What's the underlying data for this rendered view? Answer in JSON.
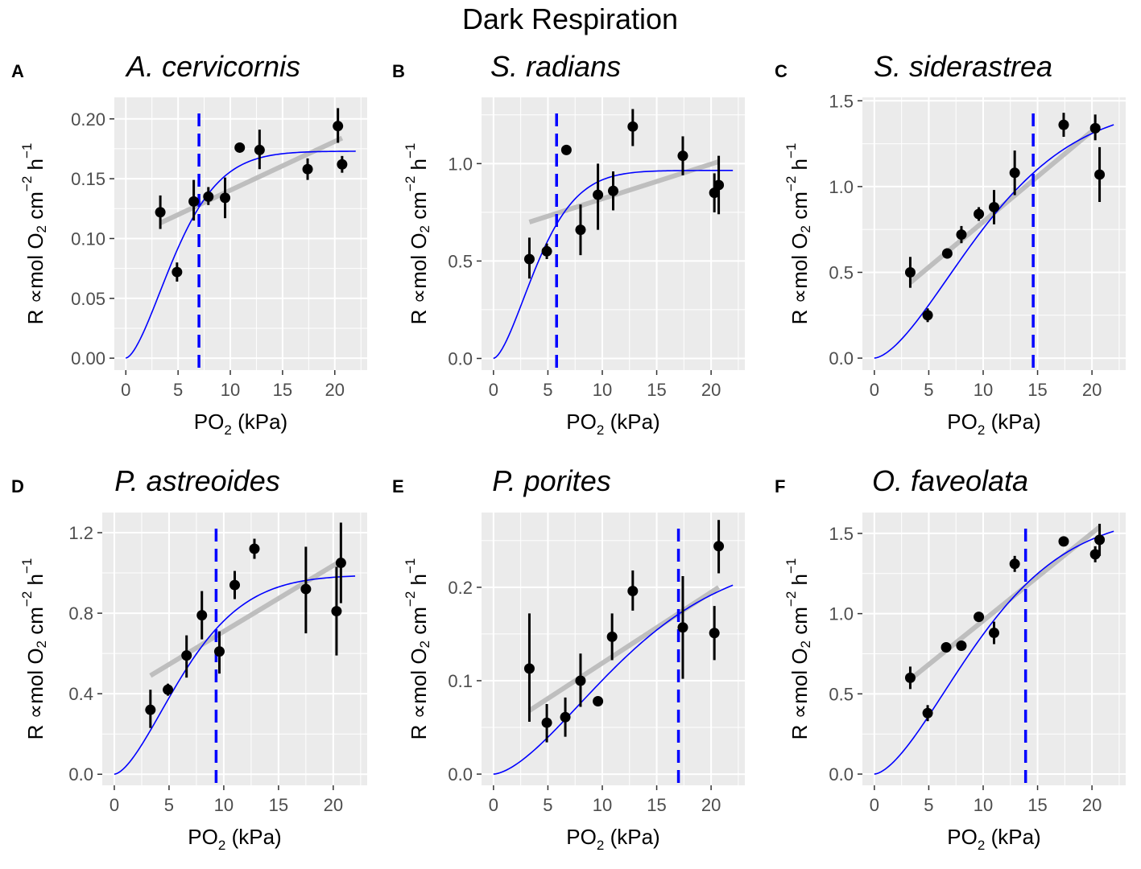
{
  "figure_title": "Dark Respiration",
  "colors": {
    "panel_bg": "#EBEBEB",
    "grid": "#FFFFFF",
    "fit_curve": "#0000FF",
    "pcrit_line": "#0000FF",
    "linear_fit": "#BEBEBE",
    "points": "#000000",
    "tick_text": "#4D4D4D"
  },
  "axis_labels": {
    "x": {
      "main": "PO",
      "sub": "2",
      "rest": " (kPa)"
    },
    "y": {
      "r": "R ",
      "mu": "∝",
      "mol": "mol O",
      "o2sub": "2",
      "cm": " cm",
      "cmsup": "−2",
      "h": " h",
      "hsup": "−1"
    }
  },
  "chart_data": [
    {
      "type": "scatter",
      "letter": "A",
      "title": "A. cervicornis",
      "xlabel": "PO2 (kPa)",
      "ylabel": "R ∝mol O2 cm−2 h−1",
      "xlim": [
        -1.1,
        23.1
      ],
      "ylim": [
        -0.01,
        0.218
      ],
      "xticks": [
        0,
        5,
        10,
        15,
        20
      ],
      "yticks": [
        0.0,
        0.05,
        0.1,
        0.15,
        0.2
      ],
      "ytick_labels": [
        "0.00",
        "0.05",
        "0.10",
        "0.15",
        "0.20"
      ],
      "points": [
        {
          "x": 3.3,
          "y": 0.122,
          "lo": 0.108,
          "hi": 0.136
        },
        {
          "x": 4.9,
          "y": 0.072,
          "lo": 0.064,
          "hi": 0.08
        },
        {
          "x": 6.5,
          "y": 0.131,
          "lo": 0.115,
          "hi": 0.149
        },
        {
          "x": 7.9,
          "y": 0.135,
          "lo": 0.128,
          "hi": 0.143
        },
        {
          "x": 9.5,
          "y": 0.134,
          "lo": 0.117,
          "hi": 0.151
        },
        {
          "x": 10.9,
          "y": 0.176,
          "lo": 0.173,
          "hi": 0.179
        },
        {
          "x": 12.8,
          "y": 0.174,
          "lo": 0.158,
          "hi": 0.191
        },
        {
          "x": 17.4,
          "y": 0.158,
          "lo": 0.149,
          "hi": 0.167
        },
        {
          "x": 20.3,
          "y": 0.194,
          "lo": 0.18,
          "hi": 0.209
        },
        {
          "x": 20.7,
          "y": 0.162,
          "lo": 0.155,
          "hi": 0.169
        }
      ],
      "pcrit": 7.0,
      "fit_curve": {
        "vmax": 0.173,
        "k": 5.93,
        "n": 1.6
      },
      "linear_fit": {
        "x": [
          3.3,
          20.7
        ],
        "y": [
          0.113,
          0.184
        ]
      }
    },
    {
      "type": "scatter",
      "letter": "B",
      "title": "S. radians",
      "xlabel": "PO2 (kPa)",
      "ylabel": "R ∝mol O2 cm−2 h−1",
      "xlim": [
        -1.1,
        23.1
      ],
      "ylim": [
        -0.06,
        1.34
      ],
      "xticks": [
        0,
        5,
        10,
        15,
        20
      ],
      "yticks": [
        0.0,
        0.5,
        1.0
      ],
      "ytick_labels": [
        "0.0",
        "0.5",
        "1.0"
      ],
      "points": [
        {
          "x": 3.3,
          "y": 0.51,
          "lo": 0.41,
          "hi": 0.62
        },
        {
          "x": 4.9,
          "y": 0.55,
          "lo": 0.51,
          "hi": 0.59
        },
        {
          "x": 6.7,
          "y": 1.07,
          "lo": 1.05,
          "hi": 1.09
        },
        {
          "x": 8.0,
          "y": 0.66,
          "lo": 0.53,
          "hi": 0.79
        },
        {
          "x": 9.6,
          "y": 0.84,
          "lo": 0.66,
          "hi": 1.0
        },
        {
          "x": 11.0,
          "y": 0.86,
          "lo": 0.76,
          "hi": 0.96
        },
        {
          "x": 12.8,
          "y": 1.19,
          "lo": 1.09,
          "hi": 1.28
        },
        {
          "x": 17.4,
          "y": 1.04,
          "lo": 0.94,
          "hi": 1.14
        },
        {
          "x": 20.3,
          "y": 0.85,
          "lo": 0.75,
          "hi": 0.95
        },
        {
          "x": 20.7,
          "y": 0.89,
          "lo": 0.74,
          "hi": 1.04
        }
      ],
      "pcrit": 5.8,
      "fit_curve": {
        "vmax": 0.965,
        "k": 5.04,
        "n": 1.6
      },
      "linear_fit": {
        "x": [
          3.3,
          20.7
        ],
        "y": [
          0.7,
          1.01
        ]
      }
    },
    {
      "type": "scatter",
      "letter": "C",
      "title": "S. siderastrea",
      "xlabel": "PO2 (kPa)",
      "ylabel": "R ∝mol O2 cm−2 h−1",
      "xlim": [
        -1.1,
        23.1
      ],
      "ylim": [
        -0.07,
        1.52
      ],
      "xticks": [
        0,
        5,
        10,
        15,
        20
      ],
      "yticks": [
        0.0,
        0.5,
        1.0,
        1.5
      ],
      "ytick_labels": [
        "0.0",
        "0.5",
        "1.0",
        "1.5"
      ],
      "points": [
        {
          "x": 3.3,
          "y": 0.5,
          "lo": 0.41,
          "hi": 0.59
        },
        {
          "x": 4.9,
          "y": 0.25,
          "lo": 0.21,
          "hi": 0.29
        },
        {
          "x": 6.7,
          "y": 0.61,
          "lo": 0.58,
          "hi": 0.64
        },
        {
          "x": 8.0,
          "y": 0.72,
          "lo": 0.67,
          "hi": 0.77
        },
        {
          "x": 9.6,
          "y": 0.84,
          "lo": 0.8,
          "hi": 0.88
        },
        {
          "x": 11.0,
          "y": 0.88,
          "lo": 0.78,
          "hi": 0.98
        },
        {
          "x": 12.9,
          "y": 1.08,
          "lo": 0.95,
          "hi": 1.21
        },
        {
          "x": 17.4,
          "y": 1.36,
          "lo": 1.29,
          "hi": 1.43
        },
        {
          "x": 20.3,
          "y": 1.34,
          "lo": 1.27,
          "hi": 1.42
        },
        {
          "x": 20.7,
          "y": 1.07,
          "lo": 0.91,
          "hi": 1.23
        }
      ],
      "pcrit": 14.6,
      "fit_curve": {
        "vmax": 1.48,
        "k": 12.36,
        "n": 1.6
      },
      "linear_fit": {
        "x": [
          3.3,
          20.7
        ],
        "y": [
          0.44,
          1.36
        ]
      }
    },
    {
      "type": "scatter",
      "letter": "D",
      "title": "P. astreoides",
      "xlabel": "PO2 (kPa)",
      "ylabel": "R ∝mol O2 cm−2 h−1",
      "xlim": [
        -1.1,
        23.1
      ],
      "ylim": [
        -0.055,
        1.3
      ],
      "xticks": [
        0,
        5,
        10,
        15,
        20
      ],
      "yticks": [
        0.0,
        0.4,
        0.8,
        1.2
      ],
      "ytick_labels": [
        "0.0",
        "0.4",
        "0.8",
        "1.2"
      ],
      "points": [
        {
          "x": 3.3,
          "y": 0.32,
          "lo": 0.23,
          "hi": 0.42
        },
        {
          "x": 4.9,
          "y": 0.42,
          "lo": 0.39,
          "hi": 0.45
        },
        {
          "x": 6.6,
          "y": 0.59,
          "lo": 0.48,
          "hi": 0.69
        },
        {
          "x": 8.0,
          "y": 0.79,
          "lo": 0.67,
          "hi": 0.91
        },
        {
          "x": 9.6,
          "y": 0.61,
          "lo": 0.5,
          "hi": 0.71
        },
        {
          "x": 11.0,
          "y": 0.94,
          "lo": 0.87,
          "hi": 1.01
        },
        {
          "x": 12.8,
          "y": 1.12,
          "lo": 1.07,
          "hi": 1.17
        },
        {
          "x": 17.5,
          "y": 0.92,
          "lo": 0.7,
          "hi": 1.13
        },
        {
          "x": 20.3,
          "y": 0.81,
          "lo": 0.59,
          "hi": 1.03
        },
        {
          "x": 20.7,
          "y": 1.05,
          "lo": 0.85,
          "hi": 1.25
        }
      ],
      "pcrit": 9.3,
      "fit_curve": {
        "vmax": 0.99,
        "k": 7.87,
        "n": 1.6
      },
      "linear_fit": {
        "x": [
          3.3,
          20.7
        ],
        "y": [
          0.49,
          1.06
        ]
      }
    },
    {
      "type": "scatter",
      "letter": "E",
      "title": "P. porites",
      "xlabel": "PO2 (kPa)",
      "ylabel": "R ∝mol O2 cm−2 h−1",
      "xlim": [
        -1.1,
        23.1
      ],
      "ylim": [
        -0.012,
        0.28
      ],
      "xticks": [
        0,
        5,
        10,
        15,
        20
      ],
      "yticks": [
        0.0,
        0.1,
        0.2
      ],
      "ytick_labels": [
        "0.0",
        "0.1",
        "0.2"
      ],
      "points": [
        {
          "x": 3.3,
          "y": 0.113,
          "lo": 0.056,
          "hi": 0.172
        },
        {
          "x": 4.9,
          "y": 0.055,
          "lo": 0.034,
          "hi": 0.075
        },
        {
          "x": 6.6,
          "y": 0.061,
          "lo": 0.04,
          "hi": 0.082
        },
        {
          "x": 8.0,
          "y": 0.1,
          "lo": 0.072,
          "hi": 0.129
        },
        {
          "x": 9.6,
          "y": 0.078,
          "lo": 0.075,
          "hi": 0.081
        },
        {
          "x": 10.9,
          "y": 0.147,
          "lo": 0.122,
          "hi": 0.172
        },
        {
          "x": 12.8,
          "y": 0.196,
          "lo": 0.175,
          "hi": 0.218
        },
        {
          "x": 17.4,
          "y": 0.157,
          "lo": 0.102,
          "hi": 0.212
        },
        {
          "x": 20.3,
          "y": 0.151,
          "lo": 0.122,
          "hi": 0.18
        },
        {
          "x": 20.7,
          "y": 0.244,
          "lo": 0.215,
          "hi": 0.272
        }
      ],
      "pcrit": 17.0,
      "fit_curve": {
        "vmax": 0.235,
        "k": 14.4,
        "n": 1.6
      },
      "linear_fit": {
        "x": [
          3.3,
          20.7
        ],
        "y": [
          0.068,
          0.2
        ]
      }
    },
    {
      "type": "scatter",
      "letter": "F",
      "title": "O. faveolata",
      "xlabel": "PO2 (kPa)",
      "ylabel": "R ∝mol O2 cm−2 h−1",
      "xlim": [
        -1.1,
        23.1
      ],
      "ylim": [
        -0.07,
        1.63
      ],
      "xticks": [
        0,
        5,
        10,
        15,
        20
      ],
      "yticks": [
        0.0,
        0.5,
        1.0,
        1.5
      ],
      "ytick_labels": [
        "0.0",
        "0.5",
        "1.0",
        "1.5"
      ],
      "points": [
        {
          "x": 3.3,
          "y": 0.6,
          "lo": 0.53,
          "hi": 0.67
        },
        {
          "x": 4.9,
          "y": 0.38,
          "lo": 0.33,
          "hi": 0.43
        },
        {
          "x": 6.6,
          "y": 0.79,
          "lo": 0.76,
          "hi": 0.82
        },
        {
          "x": 8.0,
          "y": 0.8,
          "lo": 0.77,
          "hi": 0.83
        },
        {
          "x": 9.6,
          "y": 0.98,
          "lo": 0.95,
          "hi": 1.01
        },
        {
          "x": 11.0,
          "y": 0.88,
          "lo": 0.81,
          "hi": 0.95
        },
        {
          "x": 12.9,
          "y": 1.31,
          "lo": 1.26,
          "hi": 1.36
        },
        {
          "x": 17.4,
          "y": 1.45,
          "lo": 1.43,
          "hi": 1.47
        },
        {
          "x": 20.3,
          "y": 1.37,
          "lo": 1.32,
          "hi": 1.42
        },
        {
          "x": 20.7,
          "y": 1.46,
          "lo": 1.36,
          "hi": 1.56
        }
      ],
      "pcrit": 13.9,
      "fit_curve": {
        "vmax": 1.62,
        "k": 11.77,
        "n": 1.6
      },
      "linear_fit": {
        "x": [
          3.3,
          20.7
        ],
        "y": [
          0.59,
          1.54
        ]
      }
    }
  ]
}
